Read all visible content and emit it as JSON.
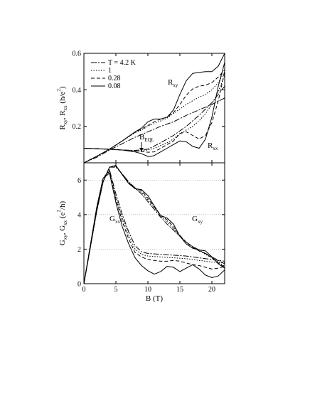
{
  "chart_data": [
    {
      "type": "line",
      "panel": "top",
      "ylabel": {
        "parts": [
          "R",
          "xy",
          ", R",
          "xx",
          " (h/e",
          "2",
          ")"
        ]
      },
      "xlim": [
        0,
        22
      ],
      "ylim": [
        0,
        0.6
      ],
      "yticks": [
        "0.2",
        "0.4",
        "0.6"
      ],
      "grid": false,
      "legend": {
        "position": "top-left",
        "entries": [
          {
            "label": "T = 4.2 K",
            "dash": "8,2,2,2"
          },
          {
            "label": "1",
            "dash": "1.5,2"
          },
          {
            "label": "0.28",
            "dash": "5,3"
          },
          {
            "label": "0.08",
            "dash": ""
          }
        ]
      },
      "annotations": [
        {
          "main": "R",
          "sub": "xy"
        },
        {
          "main": "R",
          "sub": "xx"
        },
        {
          "main": "B",
          "sub": "EQL"
        }
      ],
      "series": [
        {
          "group": "Rxy",
          "temp": "T = 4.2 K",
          "x": [
            0,
            2,
            4,
            6,
            8,
            10,
            12,
            14,
            16,
            18,
            20,
            22
          ],
          "y": [
            0,
            0.03,
            0.07,
            0.105,
            0.14,
            0.17,
            0.2,
            0.225,
            0.26,
            0.29,
            0.32,
            0.355
          ]
        },
        {
          "group": "Rxy",
          "temp": "1",
          "x": [
            0,
            2,
            4,
            6,
            8,
            9,
            10,
            11,
            12,
            13,
            14,
            15,
            16,
            17,
            18,
            19,
            20,
            21,
            22
          ],
          "y": [
            0,
            0.036,
            0.075,
            0.12,
            0.165,
            0.18,
            0.2,
            0.215,
            0.23,
            0.245,
            0.27,
            0.295,
            0.32,
            0.34,
            0.36,
            0.375,
            0.4,
            0.44,
            0.5
          ]
        },
        {
          "group": "Rxy",
          "temp": "0.28",
          "x": [
            0,
            2,
            4,
            6,
            8,
            9,
            10,
            11,
            12,
            13,
            14,
            15,
            16,
            17,
            18,
            19,
            20,
            21,
            22
          ],
          "y": [
            0,
            0.036,
            0.075,
            0.12,
            0.168,
            0.185,
            0.205,
            0.225,
            0.24,
            0.25,
            0.275,
            0.32,
            0.37,
            0.405,
            0.42,
            0.425,
            0.44,
            0.47,
            0.51
          ]
        },
        {
          "group": "Rxy",
          "temp": "0.08",
          "x": [
            0,
            2,
            4,
            6,
            8,
            9,
            10,
            11,
            12,
            13,
            14,
            15,
            16,
            17,
            18,
            19,
            20,
            21,
            22
          ],
          "y": [
            0,
            0.036,
            0.075,
            0.12,
            0.17,
            0.19,
            0.225,
            0.24,
            0.24,
            0.25,
            0.29,
            0.375,
            0.45,
            0.49,
            0.495,
            0.5,
            0.5,
            0.53,
            0.6
          ]
        },
        {
          "group": "Rxx",
          "temp": "T = 4.2 K",
          "x": [
            0,
            2,
            4,
            6,
            8,
            10,
            12,
            14,
            16,
            18,
            20,
            22
          ],
          "y": [
            0.08,
            0.078,
            0.075,
            0.07,
            0.068,
            0.075,
            0.11,
            0.15,
            0.2,
            0.26,
            0.33,
            0.42
          ]
        },
        {
          "group": "Rxx",
          "temp": "1",
          "x": [
            0,
            2,
            4,
            6,
            8,
            9,
            10,
            11,
            12,
            13,
            14,
            15,
            16,
            17,
            18,
            19,
            20,
            21,
            22
          ],
          "y": [
            0.08,
            0.077,
            0.074,
            0.07,
            0.066,
            0.065,
            0.07,
            0.08,
            0.095,
            0.11,
            0.13,
            0.16,
            0.18,
            0.2,
            0.23,
            0.27,
            0.32,
            0.39,
            0.48
          ]
        },
        {
          "group": "Rxx",
          "temp": "0.28",
          "x": [
            0,
            2,
            4,
            6,
            8,
            9,
            10,
            11,
            12,
            13,
            14,
            15,
            16,
            17,
            18,
            19,
            20,
            21,
            22
          ],
          "y": [
            0.08,
            0.077,
            0.074,
            0.07,
            0.065,
            0.062,
            0.058,
            0.06,
            0.08,
            0.1,
            0.12,
            0.16,
            0.17,
            0.15,
            0.13,
            0.15,
            0.22,
            0.34,
            0.5
          ]
        },
        {
          "group": "Rxx",
          "temp": "0.08",
          "x": [
            0,
            2,
            4,
            6,
            8,
            9,
            10,
            10.5,
            11,
            12,
            13,
            14,
            15,
            16,
            17,
            18,
            19,
            20,
            21,
            22
          ],
          "y": [
            0.08,
            0.077,
            0.074,
            0.07,
            0.06,
            0.05,
            0.035,
            0.035,
            0.04,
            0.06,
            0.08,
            0.1,
            0.12,
            0.115,
            0.09,
            0.08,
            0.13,
            0.25,
            0.42,
            0.55
          ]
        }
      ]
    },
    {
      "type": "line",
      "panel": "bottom",
      "xlabel": "B (T)",
      "ylabel": {
        "parts": [
          "G",
          "xy",
          ", G",
          "xx",
          " (e",
          "2",
          "/h)"
        ]
      },
      "xlim": [
        0,
        22
      ],
      "ylim": [
        0,
        7
      ],
      "xticks": [
        "0",
        "5",
        "10",
        "15",
        "20"
      ],
      "yticks": [
        "0",
        "2",
        "4",
        "6"
      ],
      "grid": "dotted horizontal at 2, 4, 6",
      "annotations": [
        {
          "main": "G",
          "sub": "xx"
        },
        {
          "main": "G",
          "sub": "xy"
        }
      ],
      "series": [
        {
          "group": "Gxy",
          "temp": "T = 4.2 K",
          "x": [
            0,
            1,
            2,
            3,
            4,
            5,
            6,
            7,
            8,
            9,
            10,
            11,
            12,
            13,
            14,
            15,
            16,
            17,
            18,
            19,
            20,
            21,
            22
          ],
          "y": [
            0,
            2.1,
            4.2,
            5.9,
            6.75,
            6.75,
            6.35,
            5.9,
            5.55,
            5.2,
            4.75,
            4.3,
            3.85,
            3.45,
            3.1,
            2.75,
            2.4,
            2.15,
            1.95,
            1.75,
            1.55,
            1.35,
            1.15
          ]
        },
        {
          "group": "Gxy",
          "temp": "1",
          "x": [
            0,
            1,
            2,
            3,
            4,
            5,
            6,
            7,
            8,
            9,
            10,
            11,
            12,
            13,
            14,
            15,
            16,
            17,
            18,
            19,
            20,
            21,
            22
          ],
          "y": [
            0,
            2.1,
            4.2,
            5.9,
            6.75,
            6.8,
            6.35,
            5.9,
            5.5,
            5.3,
            4.85,
            4.4,
            3.9,
            3.6,
            3.2,
            2.75,
            2.4,
            2.15,
            1.9,
            1.7,
            1.5,
            1.25,
            1.0
          ]
        },
        {
          "group": "Gxy",
          "temp": "0.28",
          "x": [
            0,
            1,
            2,
            3,
            4,
            5,
            6,
            7,
            8,
            9,
            10,
            11,
            12,
            13,
            14,
            15,
            16,
            17,
            18,
            19,
            20,
            21,
            22
          ],
          "y": [
            0,
            2.1,
            4.2,
            5.9,
            6.75,
            6.8,
            6.35,
            5.85,
            5.5,
            5.4,
            4.95,
            4.45,
            3.95,
            3.7,
            3.3,
            2.8,
            2.4,
            2.1,
            1.9,
            1.75,
            1.5,
            1.2,
            0.95
          ]
        },
        {
          "group": "Gxy",
          "temp": "0.08",
          "x": [
            0,
            1,
            2,
            3,
            4,
            5,
            6,
            7,
            8,
            9,
            10,
            11,
            12,
            13,
            14,
            15,
            16,
            17,
            18,
            19,
            20,
            21,
            22
          ],
          "y": [
            0,
            2.1,
            4.2,
            5.9,
            6.75,
            6.85,
            6.3,
            5.8,
            5.5,
            5.45,
            5.1,
            4.5,
            3.95,
            3.8,
            3.45,
            2.75,
            2.3,
            2.05,
            1.95,
            1.9,
            1.55,
            1.15,
            0.9
          ]
        },
        {
          "group": "Gxx",
          "temp": "T = 4.2 K",
          "x": [
            0,
            1,
            2,
            3,
            4,
            5,
            6,
            7,
            8,
            9,
            10,
            12,
            14,
            16,
            18,
            20,
            22
          ],
          "y": [
            0,
            2.2,
            4.4,
            6.1,
            6.6,
            5.2,
            4.0,
            3.0,
            2.2,
            1.85,
            1.75,
            1.7,
            1.65,
            1.6,
            1.5,
            1.4,
            1.3
          ]
        },
        {
          "group": "Gxx",
          "temp": "1",
          "x": [
            0,
            1,
            2,
            3,
            4,
            5,
            6,
            7,
            8,
            9,
            10,
            12,
            14,
            16,
            18,
            20,
            22
          ],
          "y": [
            0,
            2.2,
            4.4,
            6.1,
            6.55,
            5.0,
            3.8,
            2.8,
            2.0,
            1.7,
            1.6,
            1.55,
            1.5,
            1.45,
            1.35,
            1.25,
            1.2
          ]
        },
        {
          "group": "Gxx",
          "temp": "0.28",
          "x": [
            0,
            1,
            2,
            3,
            4,
            5,
            6,
            7,
            8,
            9,
            10,
            11,
            12,
            13,
            14,
            15,
            16,
            17,
            18,
            19,
            20,
            21,
            22
          ],
          "y": [
            0,
            2.2,
            4.4,
            6.1,
            6.5,
            4.9,
            3.6,
            2.6,
            1.8,
            1.55,
            1.4,
            1.35,
            1.3,
            1.3,
            1.35,
            1.3,
            1.2,
            1.1,
            1.05,
            0.95,
            0.85,
            0.9,
            1.0
          ]
        },
        {
          "group": "Gxx",
          "temp": "0.08",
          "x": [
            0,
            1,
            2,
            3,
            4,
            5,
            6,
            7,
            8,
            9,
            10,
            11,
            12,
            13,
            14,
            15,
            16,
            17,
            18,
            19,
            20,
            21,
            22
          ],
          "y": [
            0,
            2.2,
            4.4,
            6.1,
            6.4,
            4.7,
            3.3,
            2.3,
            1.5,
            1.05,
            0.75,
            0.55,
            0.7,
            1.0,
            0.95,
            0.7,
            0.9,
            1.1,
            0.85,
            0.5,
            0.35,
            0.45,
            0.8
          ]
        }
      ]
    }
  ]
}
